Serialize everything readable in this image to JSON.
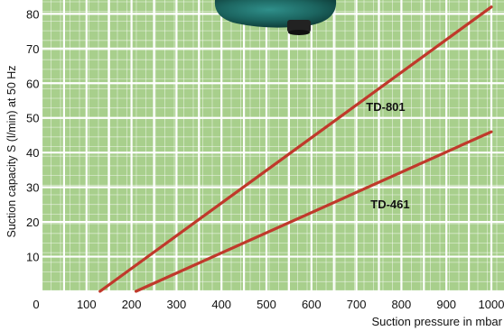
{
  "chart_data": {
    "type": "line",
    "xlabel": "Suction pressure in mbar",
    "ylabel": "Suction capacity S (l/min) at 50 Hz",
    "xticks": [
      0,
      100,
      200,
      300,
      400,
      500,
      600,
      700,
      800,
      900,
      1000
    ],
    "yticks": [
      10,
      20,
      30,
      40,
      50,
      60,
      70,
      80
    ],
    "xlim": [
      0,
      1000
    ],
    "ylim": [
      0,
      84
    ],
    "grid": true,
    "series": [
      {
        "name": "TD-801",
        "color": "#c0392b",
        "x": [
          130,
          1000
        ],
        "y": [
          0,
          82
        ]
      },
      {
        "name": "TD-461",
        "color": "#c0392b",
        "x": [
          210,
          1000
        ],
        "y": [
          0,
          46
        ]
      }
    ],
    "annotations": [
      {
        "text": "TD-801",
        "x": 765,
        "y": 53
      },
      {
        "text": "TD-461",
        "x": 775,
        "y": 25
      }
    ]
  }
}
